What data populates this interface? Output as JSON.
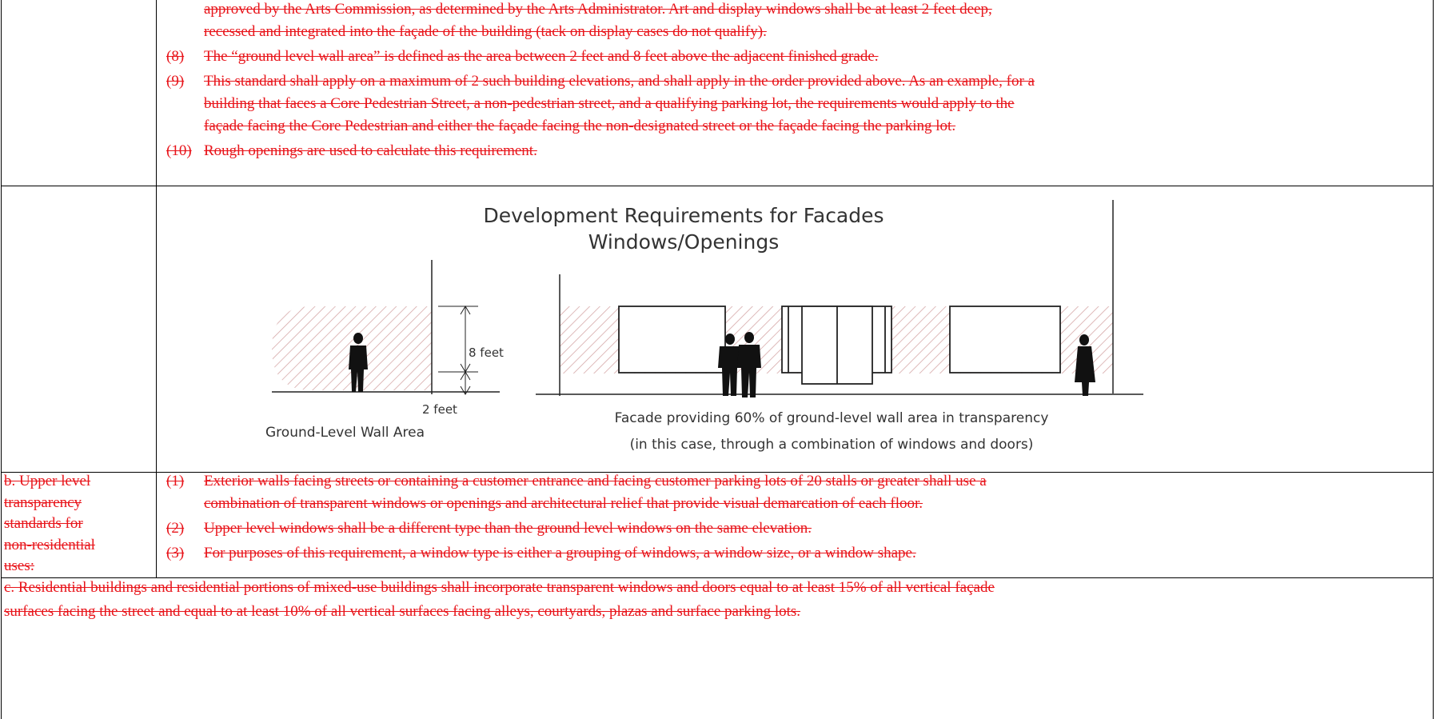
{
  "row1": {
    "continuation_lines": [
      "approved by the Arts Commission, as determined by the Arts Administrator. Art and display windows shall be at least 2 feet deep,",
      "recessed and integrated into the façade of the building (tack on display cases do not qualify)."
    ],
    "items": [
      {
        "number": "(8)",
        "lines": [
          "The “ground level wall area” is defined as the area between 2 feet and 8 feet above the adjacent finished grade."
        ]
      },
      {
        "number": "(9)",
        "lines": [
          "This standard shall apply on a maximum of 2 such building elevations, and shall apply in the order provided above. As an example, for a",
          "building that faces a Core Pedestrian Street, a non-pedestrian street, and a qualifying parking lot, the requirements would apply to the",
          "façade facing the Core Pedestrian and either the façade facing the non-designated street or the façade facing the parking lot."
        ]
      },
      {
        "number": "(10)",
        "lines": [
          "Rough openings are used to calculate this requirement."
        ]
      }
    ]
  },
  "figure": {
    "title_lines": [
      "Development Requirements for Facades",
      "Windows/Openings"
    ],
    "eight_feet": "8 feet",
    "two_feet": "2 feet",
    "left_caption": "Ground-Level Wall Area",
    "right_caption_lines": [
      "Facade providing 60% of ground-level wall area in transparency",
      "(in this case, through a combination of windows and doors)"
    ]
  },
  "row3": {
    "label_lines": [
      "b. Upper level",
      "transparency",
      "standards for",
      "non-residential",
      "uses:"
    ],
    "items": [
      {
        "number": "(1)",
        "lines": [
          "Exterior walls facing streets or containing a customer entrance and facing customer parking lots of 20 stalls or greater shall use a",
          "combination of transparent windows or openings and architectural relief that provide visual demarcation of each floor."
        ]
      },
      {
        "number": "(2)",
        "lines": [
          "Upper level windows shall be a different type than the ground level windows on the same elevation."
        ]
      },
      {
        "number": "(3)",
        "lines": [
          "For purposes of this requirement, a window type is either a grouping of windows, a window size, or a window shape."
        ]
      }
    ]
  },
  "row4": {
    "lines": [
      "c. Residential buildings and residential portions of mixed-use buildings shall incorporate transparent windows and doors equal to at least 15% of all vertical façade",
      "surfaces facing the street and equal to at least 10% of all vertical surfaces facing alleys, courtyards, plazas and surface parking lots."
    ]
  }
}
